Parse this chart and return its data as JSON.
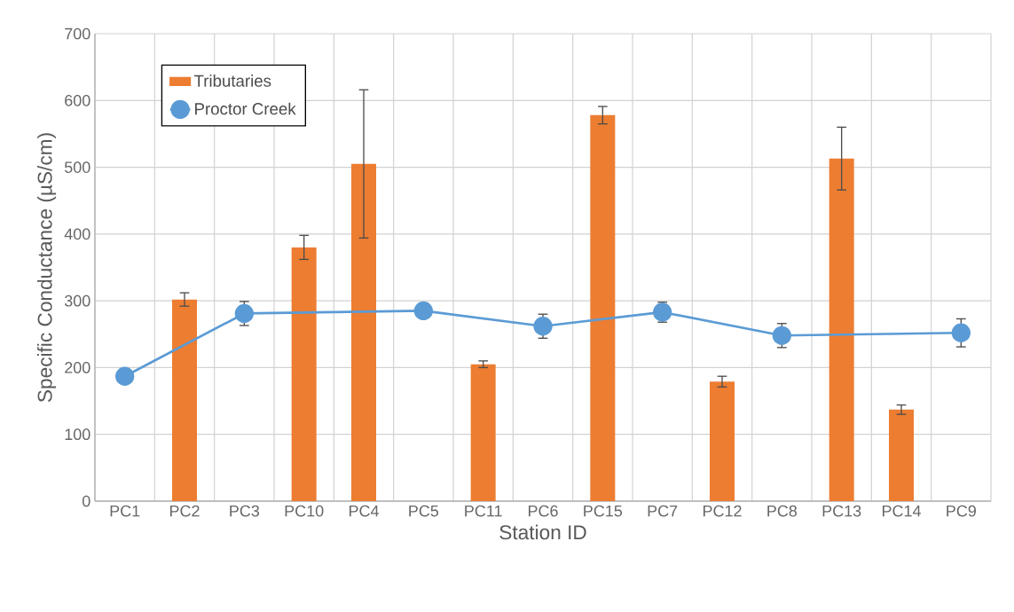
{
  "chart_data": {
    "type": "bar",
    "xlabel": "Station ID",
    "ylabel": "Specific Conductance (µS/cm)",
    "categories": [
      "PC1",
      "PC2",
      "PC3",
      "PC10",
      "PC4",
      "PC5",
      "PC11",
      "PC6",
      "PC15",
      "PC7",
      "PC12",
      "PC8",
      "PC13",
      "PC14",
      "PC9"
    ],
    "series": [
      {
        "name": "Tributaries",
        "color": "#ed7d31",
        "values": [
          null,
          302,
          null,
          380,
          505,
          null,
          205,
          null,
          578,
          null,
          179,
          null,
          513,
          137,
          null
        ],
        "errors": [
          null,
          10,
          null,
          18,
          111,
          null,
          5,
          null,
          13,
          null,
          8,
          null,
          47,
          7,
          null
        ]
      },
      {
        "name": "Proctor Creek",
        "type": "line",
        "color": "#5b9bd5",
        "marker": "circle",
        "line_style": "solid",
        "values": [
          187,
          null,
          281,
          null,
          null,
          285,
          null,
          262,
          null,
          283,
          null,
          248,
          null,
          null,
          252
        ],
        "errors": [
          null,
          null,
          18,
          null,
          null,
          null,
          null,
          18,
          null,
          15,
          null,
          18,
          null,
          null,
          21
        ]
      }
    ],
    "ylim": [
      0,
      700
    ],
    "yticks": [
      0,
      100,
      200,
      300,
      400,
      500,
      600,
      700
    ],
    "grid": true,
    "legend": "top left"
  }
}
